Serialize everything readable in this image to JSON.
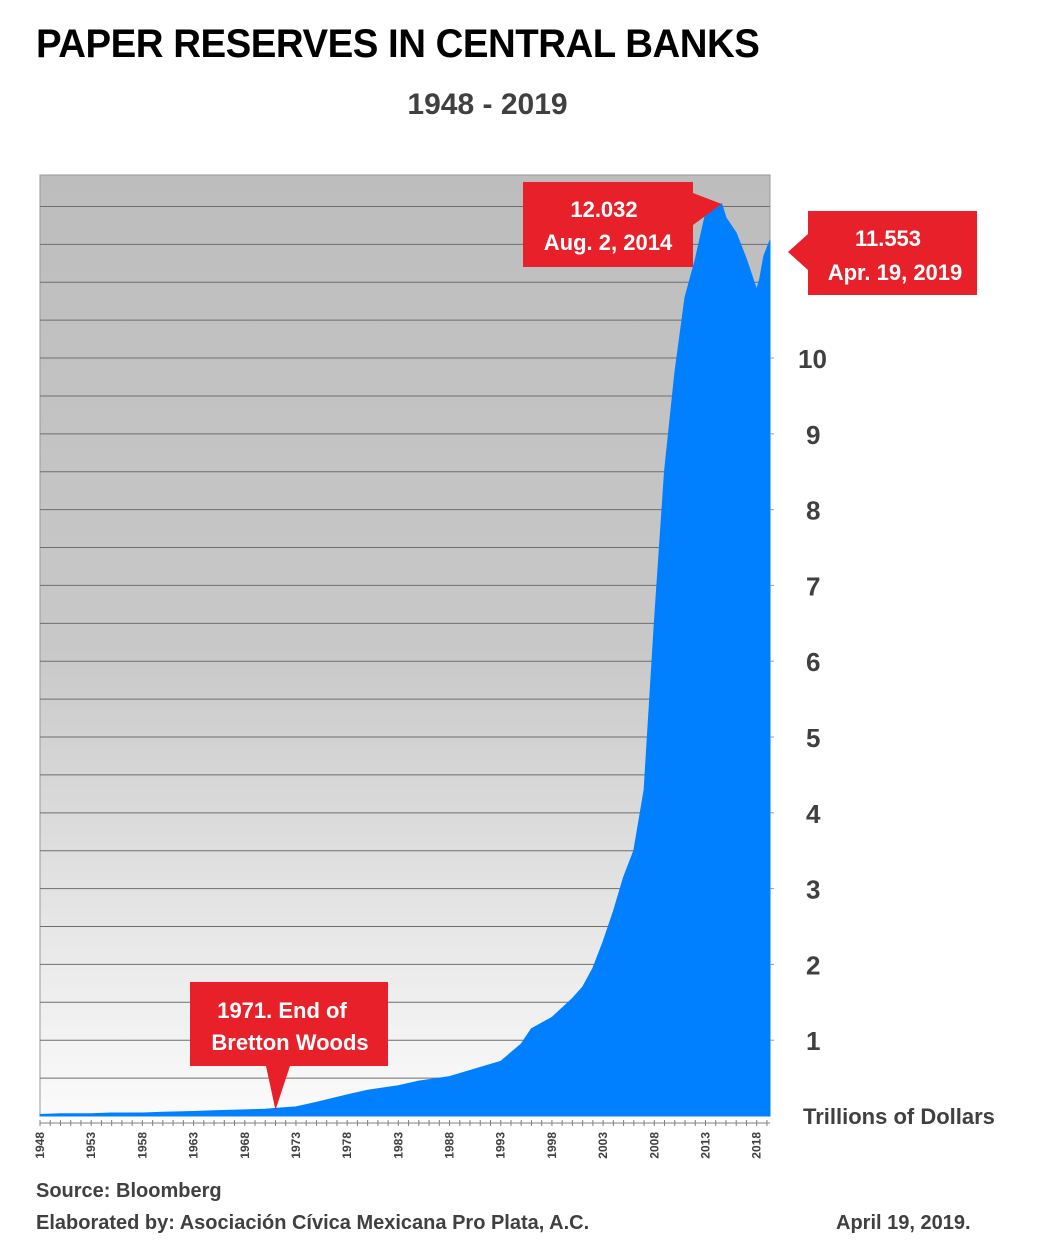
{
  "header": {
    "title": "PAPER RESERVES IN CENTRAL BANKS",
    "subtitle": "1948 - 2019"
  },
  "chart_data": {
    "type": "area",
    "title": "PAPER RESERVES IN CENTRAL BANKS",
    "subtitle": "1948 - 2019",
    "ylabel": "Trillions of Dollars",
    "xlabel": "",
    "series_color": "#0080ff",
    "xlim": [
      1948,
      2019.3
    ],
    "ylim": [
      0,
      12.5
    ],
    "grid": true,
    "x": [
      1948,
      1950,
      1953,
      1955,
      1958,
      1960,
      1963,
      1965,
      1968,
      1970,
      1971,
      1973,
      1975,
      1978,
      1980,
      1983,
      1985,
      1988,
      1990,
      1993,
      1995,
      1996,
      1998,
      2000,
      2001,
      2002,
      2003,
      2004,
      2005,
      2006,
      2007,
      2008,
      2009,
      2010,
      2011,
      2012,
      2013,
      2014.58,
      2015,
      2016,
      2017,
      2018,
      2018.3,
      2018.7,
      2019.3
    ],
    "y": [
      0.02,
      0.03,
      0.03,
      0.04,
      0.04,
      0.05,
      0.06,
      0.07,
      0.08,
      0.09,
      0.1,
      0.12,
      0.18,
      0.28,
      0.34,
      0.4,
      0.46,
      0.52,
      0.6,
      0.72,
      0.95,
      1.15,
      1.3,
      1.55,
      1.7,
      1.95,
      2.3,
      2.7,
      3.15,
      3.5,
      4.3,
      6.5,
      8.5,
      9.8,
      10.8,
      11.3,
      11.9,
      12.032,
      11.85,
      11.65,
      11.3,
      10.9,
      11.05,
      11.35,
      11.553
    ],
    "yticks": [
      1,
      2,
      3,
      4,
      5,
      6,
      7,
      8,
      9,
      10
    ],
    "xticks": [
      1948,
      1953,
      1958,
      1963,
      1968,
      1973,
      1978,
      1983,
      1988,
      1993,
      1998,
      2003,
      2008,
      2013,
      2018
    ],
    "annotations": [
      {
        "value": "12.032",
        "date": "Aug. 2, 2014",
        "x": 2014.58,
        "y": 12.032
      },
      {
        "value": "11.553",
        "date": "Apr. 19, 2019",
        "x": 2019.3,
        "y": 11.553
      },
      {
        "line1": "1971. End of",
        "line2": "Bretton Woods",
        "x": 1971,
        "y": 0
      }
    ]
  },
  "footer": {
    "source": "Source: Bloomberg",
    "elaborated": "Elaborated by: Asociación Cívica Mexicana Pro Plata, A.C.",
    "date": "April 19, 2019."
  }
}
